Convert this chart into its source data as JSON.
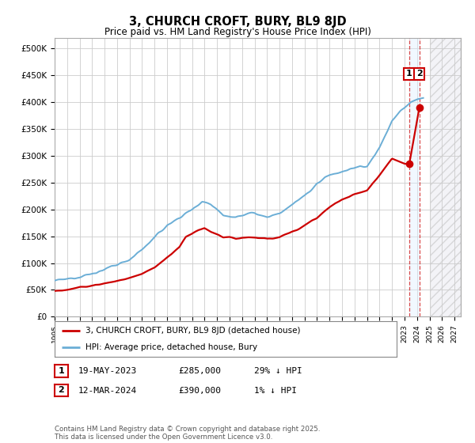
{
  "title": "3, CHURCH CROFT, BURY, BL9 8JD",
  "subtitle": "Price paid vs. HM Land Registry's House Price Index (HPI)",
  "xlim_start": 1995.0,
  "xlim_end": 2027.5,
  "ylim_min": 0,
  "ylim_max": 520000,
  "yticks": [
    0,
    50000,
    100000,
    150000,
    200000,
    250000,
    300000,
    350000,
    400000,
    450000,
    500000
  ],
  "ytick_labels": [
    "£0",
    "£50K",
    "£100K",
    "£150K",
    "£200K",
    "£250K",
    "£300K",
    "£350K",
    "£400K",
    "£450K",
    "£500K"
  ],
  "xticks": [
    1995,
    1996,
    1997,
    1998,
    1999,
    2000,
    2001,
    2002,
    2003,
    2004,
    2005,
    2006,
    2007,
    2008,
    2009,
    2010,
    2011,
    2012,
    2013,
    2014,
    2015,
    2016,
    2017,
    2018,
    2019,
    2020,
    2021,
    2022,
    2023,
    2024,
    2025,
    2026,
    2027
  ],
  "hpi_color": "#6baed6",
  "price_color": "#cc0000",
  "background_color": "#ffffff",
  "grid_color": "#cccccc",
  "sale1_date": 2023.38,
  "sale1_price": 285000,
  "sale1_label": "1",
  "sale2_date": 2024.19,
  "sale2_price": 390000,
  "sale2_label": "2",
  "legend_line1": "3, CHURCH CROFT, BURY, BL9 8JD (detached house)",
  "legend_line2": "HPI: Average price, detached house, Bury",
  "table_row1": [
    "1",
    "19-MAY-2023",
    "£285,000",
    "29% ↓ HPI"
  ],
  "table_row2": [
    "2",
    "12-MAR-2024",
    "£390,000",
    "1% ↓ HPI"
  ],
  "footer": "Contains HM Land Registry data © Crown copyright and database right 2025.\nThis data is licensed under the Open Government Licence v3.0.",
  "future_start": 2025.08,
  "hpi_anchor_years": [
    1995.0,
    1996.0,
    1997.0,
    1998.0,
    1999.0,
    2000.0,
    2001.0,
    2002.0,
    2003.0,
    2004.0,
    2005.0,
    2006.0,
    2006.8,
    2007.5,
    2008.5,
    2009.5,
    2010.5,
    2011.0,
    2012.0,
    2013.0,
    2014.0,
    2015.0,
    2016.0,
    2017.0,
    2018.0,
    2019.0,
    2020.0,
    2021.0,
    2022.0,
    2023.0,
    2023.5,
    2024.0,
    2024.5
  ],
  "hpi_anchor_vals": [
    67000,
    70000,
    75000,
    80000,
    88000,
    97000,
    107000,
    125000,
    148000,
    170000,
    185000,
    200000,
    215000,
    210000,
    190000,
    185000,
    192000,
    193000,
    185000,
    193000,
    208000,
    225000,
    248000,
    265000,
    270000,
    278000,
    280000,
    315000,
    365000,
    390000,
    400000,
    405000,
    408000
  ],
  "price_anchor_years": [
    1995.0,
    1995.5,
    1996.5,
    1997.0,
    1998.0,
    1999.0,
    2000.0,
    2001.0,
    2002.0,
    2003.0,
    2004.0,
    2005.0,
    2005.5,
    2006.5,
    2007.0,
    2007.5,
    2008.5,
    2009.0,
    2009.5,
    2010.0,
    2011.0,
    2012.0,
    2013.0,
    2014.0,
    2015.0,
    2016.0,
    2017.0,
    2018.0,
    2019.0,
    2020.0,
    2021.0,
    2022.0,
    2023.0,
    2023.38,
    2024.19
  ],
  "price_anchor_vals": [
    48000,
    49000,
    52000,
    55000,
    58000,
    62000,
    67000,
    72000,
    80000,
    92000,
    110000,
    130000,
    148000,
    162000,
    165000,
    158000,
    148000,
    148000,
    145000,
    148000,
    148000,
    145000,
    148000,
    158000,
    170000,
    185000,
    205000,
    218000,
    228000,
    235000,
    265000,
    295000,
    285000,
    285000,
    390000
  ]
}
